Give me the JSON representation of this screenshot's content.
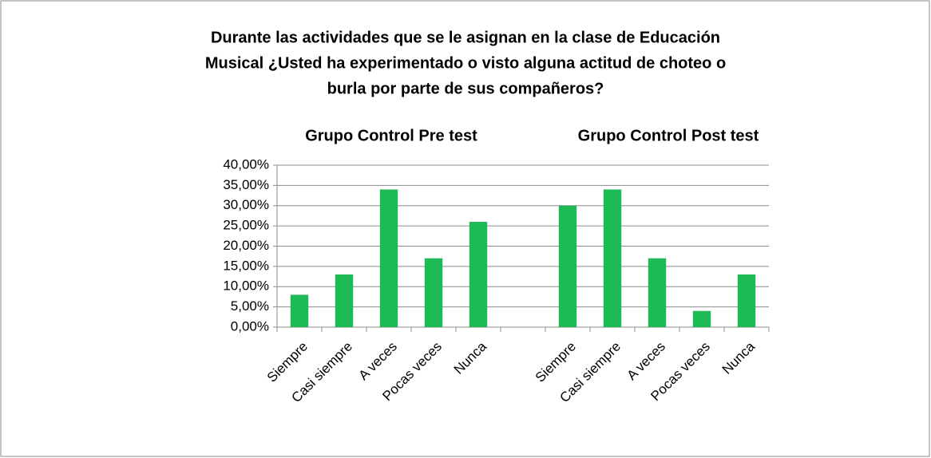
{
  "chart_data": {
    "type": "bar",
    "title": [
      "Durante las actividades que se le asignan en la clase de Educación",
      "Musical ¿Usted ha experimentado o visto alguna actitud de choteo o",
      "burla por parte de sus compañeros?"
    ],
    "annotations": [
      "Grupo Control Pre test",
      "Grupo Control Post test"
    ],
    "categories": [
      "Siempre",
      "Casi siempre",
      "A veces",
      "Pocas veces",
      "Nunca",
      null,
      "Siempre",
      "Casi siempre",
      "A veces",
      "Pocas veces",
      "Nunca"
    ],
    "values": [
      8,
      13,
      34,
      17,
      26,
      null,
      30,
      34,
      17,
      4,
      13
    ],
    "color": "#1db954",
    "ylim": [
      0,
      40
    ],
    "yticks": [
      {
        "value": 0,
        "label": "0,00%"
      },
      {
        "value": 5,
        "label": "5,00%"
      },
      {
        "value": 10,
        "label": "10,00%"
      },
      {
        "value": 15,
        "label": "15,00%"
      },
      {
        "value": 20,
        "label": "20,00%"
      },
      {
        "value": 25,
        "label": "25,00%"
      },
      {
        "value": 30,
        "label": "30,00%"
      },
      {
        "value": 35,
        "label": "35,00%"
      },
      {
        "value": 40,
        "label": "40,00%"
      }
    ],
    "grid": true
  }
}
